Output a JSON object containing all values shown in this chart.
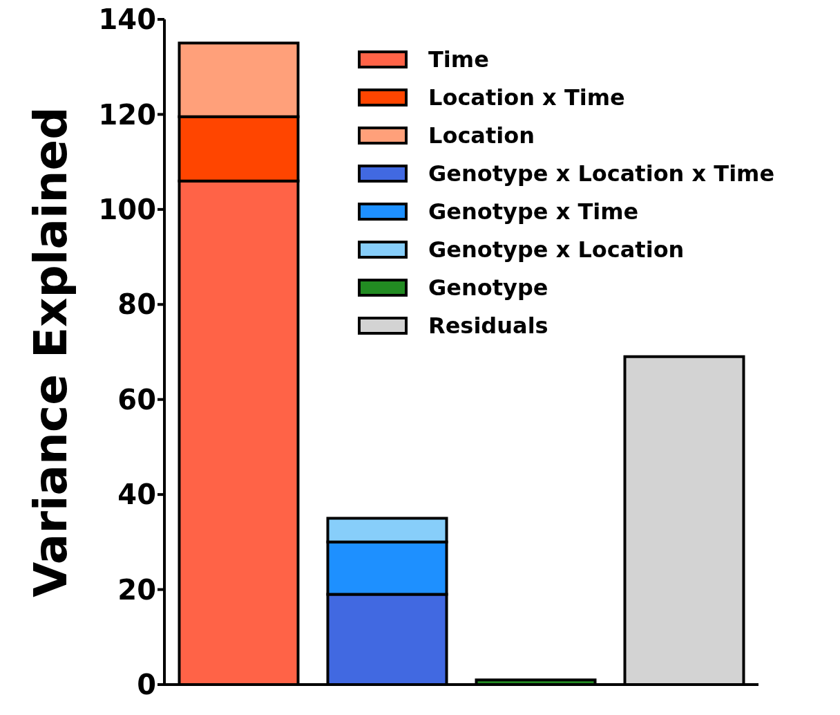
{
  "chart_data": {
    "type": "bar",
    "ylabel": "Variance Explained",
    "categories": [
      null,
      null,
      null,
      null
    ],
    "stacked": true,
    "series": [
      {
        "name": "Time",
        "color": "#ff6347",
        "values": [
          106,
          null,
          null,
          null
        ]
      },
      {
        "name": "Location x Time",
        "color": "#ff4500",
        "values": [
          13.5,
          null,
          null,
          null
        ]
      },
      {
        "name": "Location",
        "color": "#ffa07a",
        "values": [
          15.5,
          null,
          null,
          null
        ]
      },
      {
        "name": "Genotype x Location x Time",
        "color": "#4169e1",
        "values": [
          null,
          19,
          null,
          null
        ]
      },
      {
        "name": "Genotype x Time",
        "color": "#1e90ff",
        "values": [
          null,
          11,
          null,
          null
        ]
      },
      {
        "name": "Genotype x Location",
        "color": "#87cefa",
        "values": [
          null,
          5,
          null,
          null
        ]
      },
      {
        "name": "Genotype",
        "color": "#228b22",
        "values": [
          null,
          null,
          1,
          null
        ]
      },
      {
        "name": "Residuals",
        "color": "#d3d3d3",
        "values": [
          null,
          null,
          null,
          69
        ]
      }
    ],
    "ylim": [
      0,
      140
    ],
    "yticks": [
      0,
      20,
      40,
      60,
      80,
      100,
      120,
      140
    ],
    "grid": false,
    "legend": "top right",
    "tick_labels": "y"
  }
}
